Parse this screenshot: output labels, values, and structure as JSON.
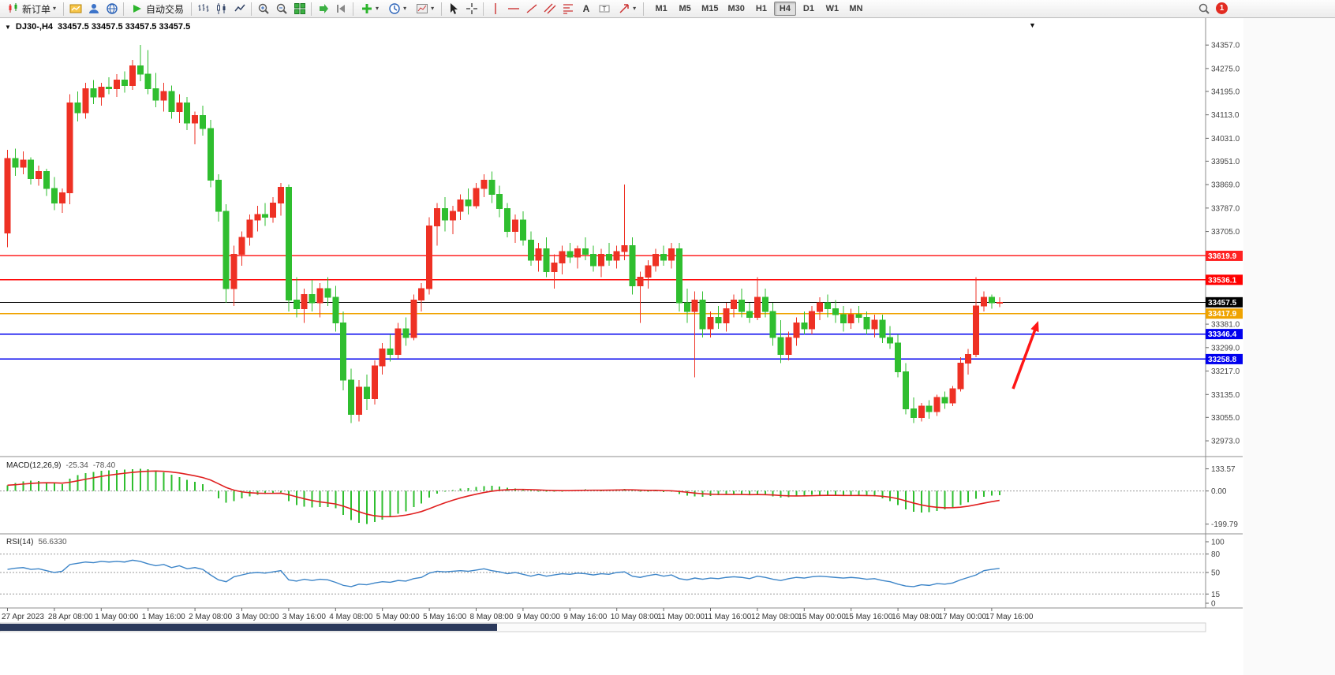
{
  "toolbar": {
    "new_order_label": "新订单",
    "auto_trading_label": "自动交易",
    "timeframes": [
      "M1",
      "M5",
      "M15",
      "M30",
      "H1",
      "H4",
      "D1",
      "W1",
      "MN"
    ],
    "active_timeframe": "H4",
    "notification_count": "1"
  },
  "chart_header": {
    "symbol_timeframe": "DJ30-,H4",
    "ohlc": "33457.5 33457.5 33457.5 33457.5"
  },
  "indicators": {
    "macd": {
      "name": "MACD(12,26,9)",
      "value_main": "-25.34",
      "value_signal": "-78.40"
    },
    "rsi": {
      "name": "RSI(14)",
      "value": "56.6330"
    }
  },
  "chart_data": {
    "type": "candlestick",
    "symbol": "DJ30-",
    "period": "H4",
    "colors": {
      "bull": "#ee3124",
      "bear": "#2fbe2f",
      "macd_hist": "#2fbe2f",
      "macd_signal": "#e02020",
      "rsi_line": "#3d85c8"
    },
    "price_axis": {
      "plot_min": 32940,
      "plot_max": 34385,
      "ticks": [
        34357.0,
        34275.0,
        34195.0,
        34113.0,
        34031.0,
        33951.0,
        33869.0,
        33787.0,
        33705.0,
        33381.0,
        33299.0,
        33217.0,
        33135.0,
        33055.0,
        32973.0
      ]
    },
    "price_markers": [
      {
        "value": 33619.9,
        "label": "33619.9",
        "color": "#ff2222",
        "kind": "resistance"
      },
      {
        "value": 33536.1,
        "label": "33536.1",
        "color": "#ff0000",
        "kind": "resistance"
      },
      {
        "value": 33457.5,
        "label": "33457.5",
        "color": "#000000",
        "kind": "current-price"
      },
      {
        "value": 33417.9,
        "label": "33417.9",
        "color": "#efa300",
        "kind": "level"
      },
      {
        "value": 33346.4,
        "label": "33346.4",
        "color": "#0000ee",
        "kind": "support"
      },
      {
        "value": 33258.8,
        "label": "33258.8",
        "color": "#0000ee",
        "kind": "support"
      }
    ],
    "candles": [
      [
        33700,
        33990,
        33650,
        33960
      ],
      [
        33960,
        33995,
        33900,
        33930
      ],
      [
        33930,
        33985,
        33905,
        33955
      ],
      [
        33955,
        33965,
        33870,
        33890
      ],
      [
        33890,
        33935,
        33865,
        33915
      ],
      [
        33915,
        33925,
        33830,
        33855
      ],
      [
        33855,
        33895,
        33780,
        33805
      ],
      [
        33805,
        33855,
        33770,
        33840
      ],
      [
        33840,
        34185,
        33800,
        34155
      ],
      [
        34155,
        34195,
        34090,
        34120
      ],
      [
        34120,
        34225,
        34100,
        34205
      ],
      [
        34205,
        34235,
        34150,
        34175
      ],
      [
        34175,
        34225,
        34145,
        34210
      ],
      [
        34210,
        34245,
        34185,
        34205
      ],
      [
        34205,
        34255,
        34175,
        34235
      ],
      [
        34235,
        34265,
        34190,
        34215
      ],
      [
        34215,
        34305,
        34200,
        34285
      ],
      [
        34285,
        34357,
        34230,
        34255
      ],
      [
        34255,
        34340,
        34185,
        34205
      ],
      [
        34205,
        34260,
        34140,
        34165
      ],
      [
        34165,
        34225,
        34125,
        34195
      ],
      [
        34195,
        34215,
        34100,
        34125
      ],
      [
        34125,
        34185,
        34085,
        34155
      ],
      [
        34155,
        34175,
        34060,
        34085
      ],
      [
        34085,
        34125,
        34010,
        34110
      ],
      [
        34110,
        34145,
        34040,
        34065
      ],
      [
        34065,
        34095,
        33860,
        33885
      ],
      [
        33885,
        33905,
        33740,
        33775
      ],
      [
        33775,
        33800,
        33455,
        33505
      ],
      [
        33505,
        33655,
        33445,
        33625
      ],
      [
        33625,
        33705,
        33585,
        33685
      ],
      [
        33685,
        33765,
        33655,
        33745
      ],
      [
        33745,
        33795,
        33705,
        33765
      ],
      [
        33765,
        33805,
        33725,
        33755
      ],
      [
        33755,
        33825,
        33735,
        33805
      ],
      [
        33805,
        33875,
        33760,
        33860
      ],
      [
        33860,
        33870,
        33425,
        33465
      ],
      [
        33465,
        33545,
        33405,
        33435
      ],
      [
        33435,
        33505,
        33385,
        33485
      ],
      [
        33485,
        33535,
        33425,
        33455
      ],
      [
        33455,
        33525,
        33405,
        33505
      ],
      [
        33505,
        33545,
        33445,
        33475
      ],
      [
        33475,
        33515,
        33355,
        33385
      ],
      [
        33385,
        33425,
        33150,
        33185
      ],
      [
        33185,
        33225,
        33035,
        33065
      ],
      [
        33065,
        33185,
        33040,
        33160
      ],
      [
        33160,
        33205,
        33080,
        33120
      ],
      [
        33120,
        33255,
        33100,
        33235
      ],
      [
        33235,
        33315,
        33205,
        33295
      ],
      [
        33295,
        33345,
        33250,
        33275
      ],
      [
        33275,
        33385,
        33260,
        33365
      ],
      [
        33365,
        33405,
        33305,
        33335
      ],
      [
        33335,
        33485,
        33325,
        33465
      ],
      [
        33465,
        33525,
        33425,
        33505
      ],
      [
        33505,
        33755,
        33485,
        33725
      ],
      [
        33725,
        33805,
        33655,
        33785
      ],
      [
        33785,
        33825,
        33705,
        33745
      ],
      [
        33745,
        33795,
        33695,
        33775
      ],
      [
        33775,
        33835,
        33745,
        33815
      ],
      [
        33815,
        33855,
        33765,
        33795
      ],
      [
        33795,
        33875,
        33785,
        33855
      ],
      [
        33855,
        33905,
        33825,
        33885
      ],
      [
        33885,
        33915,
        33805,
        33835
      ],
      [
        33835,
        33865,
        33755,
        33785
      ],
      [
        33785,
        33805,
        33685,
        33705
      ],
      [
        33705,
        33765,
        33665,
        33745
      ],
      [
        33745,
        33775,
        33655,
        33675
      ],
      [
        33675,
        33705,
        33585,
        33605
      ],
      [
        33605,
        33665,
        33565,
        33645
      ],
      [
        33645,
        33685,
        33545,
        33565
      ],
      [
        33565,
        33625,
        33505,
        33595
      ],
      [
        33595,
        33655,
        33555,
        33635
      ],
      [
        33635,
        33665,
        33595,
        33615
      ],
      [
        33615,
        33655,
        33575,
        33645
      ],
      [
        33645,
        33685,
        33605,
        33625
      ],
      [
        33625,
        33655,
        33565,
        33585
      ],
      [
        33585,
        33645,
        33545,
        33625
      ],
      [
        33625,
        33665,
        33585,
        33605
      ],
      [
        33605,
        33655,
        33575,
        33635
      ],
      [
        33635,
        33870,
        33605,
        33655
      ],
      [
        33655,
        33685,
        33485,
        33515
      ],
      [
        33515,
        33565,
        33385,
        33545
      ],
      [
        33545,
        33605,
        33505,
        33585
      ],
      [
        33585,
        33645,
        33565,
        33625
      ],
      [
        33625,
        33655,
        33585,
        33605
      ],
      [
        33605,
        33665,
        33575,
        33645
      ],
      [
        33645,
        33665,
        33425,
        33455
      ],
      [
        33455,
        33505,
        33385,
        33425
      ],
      [
        33425,
        33495,
        33195,
        33465
      ],
      [
        33465,
        33495,
        33335,
        33365
      ],
      [
        33365,
        33425,
        33335,
        33405
      ],
      [
        33405,
        33445,
        33365,
        33385
      ],
      [
        33385,
        33455,
        33355,
        33435
      ],
      [
        33435,
        33485,
        33405,
        33465
      ],
      [
        33465,
        33505,
        33405,
        33425
      ],
      [
        33425,
        33455,
        33385,
        33405
      ],
      [
        33405,
        33545,
        33395,
        33475
      ],
      [
        33475,
        33505,
        33405,
        33425
      ],
      [
        33425,
        33455,
        33305,
        33335
      ],
      [
        33335,
        33395,
        33245,
        33275
      ],
      [
        33275,
        33355,
        33255,
        33335
      ],
      [
        33335,
        33405,
        33305,
        33385
      ],
      [
        33385,
        33425,
        33345,
        33365
      ],
      [
        33365,
        33445,
        33345,
        33425
      ],
      [
        33425,
        33475,
        33395,
        33455
      ],
      [
        33455,
        33485,
        33405,
        33435
      ],
      [
        33435,
        33465,
        33385,
        33415
      ],
      [
        33415,
        33445,
        33355,
        33385
      ],
      [
        33385,
        33435,
        33365,
        33415
      ],
      [
        33415,
        33445,
        33385,
        33405
      ],
      [
        33405,
        33425,
        33345,
        33365
      ],
      [
        33365,
        33415,
        33335,
        33395
      ],
      [
        33395,
        33415,
        33315,
        33335
      ],
      [
        33335,
        33375,
        33295,
        33315
      ],
      [
        33315,
        33345,
        33195,
        33215
      ],
      [
        33215,
        33245,
        33065,
        33085
      ],
      [
        33085,
        33125,
        33035,
        33055
      ],
      [
        33055,
        33105,
        33040,
        33095
      ],
      [
        33095,
        33115,
        33050,
        33075
      ],
      [
        33075,
        33135,
        33060,
        33125
      ],
      [
        33125,
        33145,
        33085,
        33105
      ],
      [
        33105,
        33165,
        33095,
        33155
      ],
      [
        33155,
        33265,
        33145,
        33245
      ],
      [
        33245,
        33295,
        33205,
        33275
      ],
      [
        33275,
        33545,
        33265,
        33445
      ],
      [
        33445,
        33495,
        33425,
        33475
      ],
      [
        33475,
        33485,
        33435,
        33455
      ],
      [
        33455,
        33475,
        33440,
        33457.5
      ]
    ],
    "time_labels": [
      "27 Apr 2023",
      "28 Apr 08:00",
      "1 May 00:00",
      "1 May 16:00",
      "2 May 08:00",
      "3 May 00:00",
      "3 May 16:00",
      "4 May 08:00",
      "5 May 00:00",
      "5 May 16:00",
      "8 May 08:00",
      "9 May 00:00",
      "9 May 16:00",
      "10 May 08:00",
      "11 May 00:00",
      "11 May 16:00",
      "12 May 08:00",
      "15 May 00:00",
      "15 May 16:00",
      "16 May 08:00",
      "17 May 00:00",
      "17 May 16:00"
    ],
    "label_every": 6,
    "macd": {
      "plot_max": 160,
      "plot_min": -230,
      "signal_period": 9,
      "ticks": [
        {
          "value": 133.57,
          "label": "133.57"
        },
        {
          "value": 0,
          "label": "0.00"
        },
        {
          "value": -199.79,
          "label": "-199.79"
        }
      ],
      "main": [
        35,
        48,
        58,
        62,
        60,
        54,
        46,
        42,
        75,
        95,
        108,
        116,
        121,
        124,
        127,
        129,
        132,
        133.57,
        131,
        124,
        113,
        98,
        84,
        68,
        55,
        40,
        5,
        -45,
        -70,
        -60,
        -45,
        -32,
        -24,
        -18,
        -14,
        -10,
        -60,
        -85,
        -95,
        -100,
        -98,
        -96,
        -105,
        -145,
        -175,
        -192,
        -199.79,
        -188,
        -172,
        -158,
        -138,
        -122,
        -98,
        -75,
        -40,
        -15,
        -2,
        6,
        14,
        18,
        24,
        30,
        31,
        27,
        20,
        16,
        10,
        2,
        0,
        -4,
        -3,
        0,
        3,
        6,
        9,
        7,
        4,
        7,
        9,
        12,
        5,
        -2,
        1,
        4,
        -6,
        -2,
        -18,
        -28,
        -32,
        -34,
        -30,
        -26,
        -22,
        -20,
        -22,
        -26,
        -20,
        -24,
        -32,
        -40,
        -38,
        -32,
        -28,
        -24,
        -22,
        -24,
        -26,
        -30,
        -28,
        -26,
        -30,
        -32,
        -45,
        -60,
        -85,
        -110,
        -125,
        -130,
        -128,
        -120,
        -112,
        -100,
        -85,
        -68,
        -48,
        -35,
        -28,
        -25.34
      ]
    },
    "rsi": {
      "plot_max": 100,
      "plot_min": 0,
      "levels": [
        80,
        50,
        15
      ],
      "ticks": [
        {
          "value": 100,
          "label": "100"
        },
        {
          "value": 80,
          "label": "80"
        },
        {
          "value": 50,
          "label": "50"
        },
        {
          "value": 15,
          "label": "15"
        },
        {
          "value": 0,
          "label": "0"
        }
      ],
      "values": [
        55,
        57,
        58,
        55,
        56,
        53,
        50,
        52,
        63,
        65,
        67,
        66,
        68,
        67,
        68,
        67,
        70,
        68,
        64,
        61,
        63,
        58,
        61,
        56,
        58,
        55,
        46,
        38,
        35,
        43,
        46,
        49,
        50,
        49,
        51,
        53,
        38,
        36,
        39,
        37,
        39,
        38,
        34,
        29,
        27,
        31,
        30,
        33,
        35,
        34,
        37,
        36,
        40,
        42,
        49,
        52,
        51,
        52,
        53,
        52,
        54,
        56,
        53,
        51,
        48,
        50,
        47,
        44,
        47,
        44,
        46,
        48,
        47,
        49,
        48,
        46,
        48,
        47,
        50,
        51,
        44,
        42,
        45,
        47,
        44,
        46,
        40,
        38,
        41,
        39,
        41,
        40,
        42,
        43,
        42,
        40,
        44,
        42,
        39,
        37,
        40,
        42,
        41,
        43,
        44,
        43,
        42,
        41,
        42,
        41,
        39,
        40,
        37,
        35,
        31,
        28,
        27,
        30,
        29,
        32,
        31,
        33,
        38,
        42,
        46,
        53,
        55,
        56.633
      ]
    },
    "annotation_arrow": {
      "from": [
        1284,
        470
      ],
      "to": [
        1316,
        384
      ],
      "color": "#ff1616"
    }
  }
}
